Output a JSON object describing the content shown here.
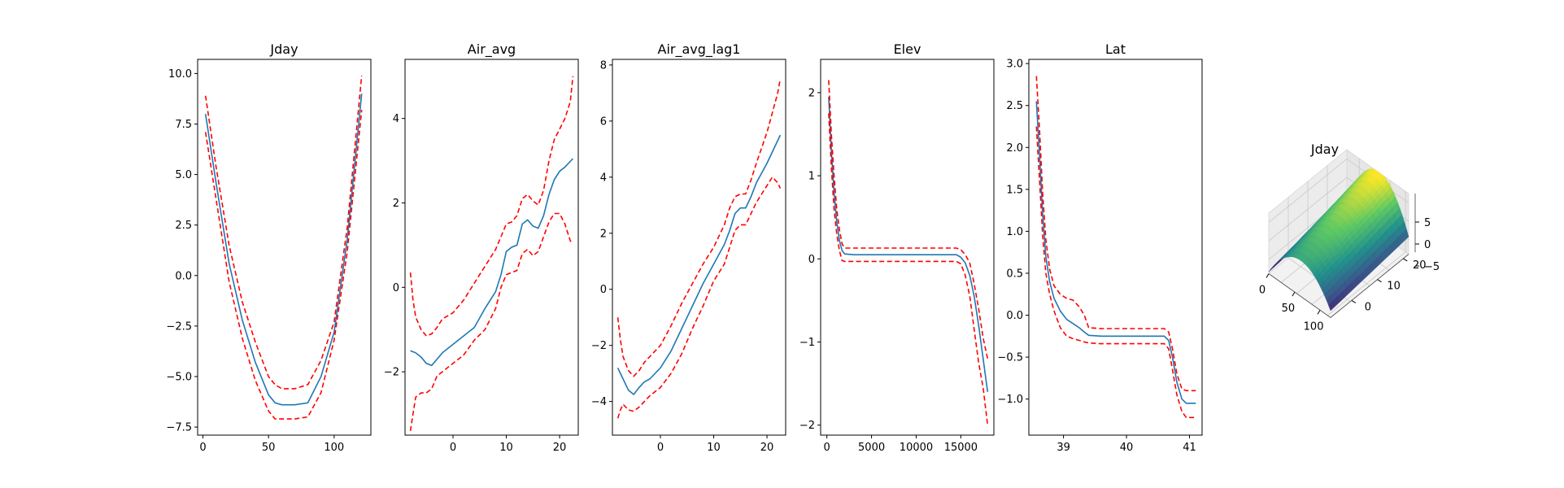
{
  "chart_data": [
    {
      "type": "line",
      "title": "Jday",
      "xlim": [
        -4,
        128
      ],
      "ylim": [
        -7.9,
        10.7
      ],
      "xticks": [
        0,
        50,
        100
      ],
      "xtick_labels": [
        "0",
        "50",
        "100"
      ],
      "yticks": [
        -7.5,
        -5.0,
        -2.5,
        0.0,
        2.5,
        5.0,
        7.5,
        10.0
      ],
      "ytick_labels": [
        "−7.5",
        "−5.0",
        "−2.5",
        "0.0",
        "2.5",
        "5.0",
        "7.5",
        "10.0"
      ],
      "series": [
        {
          "role": "fit",
          "x": [
            2,
            10,
            20,
            30,
            40,
            50,
            55,
            60,
            70,
            80,
            90,
            100,
            110,
            121
          ],
          "y": [
            8.0,
            4.6,
            0.6,
            -2.2,
            -4.3,
            -5.9,
            -6.3,
            -6.4,
            -6.4,
            -6.3,
            -5.0,
            -2.8,
            1.8,
            9.0
          ]
        },
        {
          "role": "upper",
          "x": [
            2,
            10,
            20,
            30,
            40,
            50,
            55,
            60,
            70,
            80,
            90,
            100,
            110,
            121
          ],
          "y": [
            8.9,
            5.4,
            1.5,
            -1.3,
            -3.3,
            -5.0,
            -5.4,
            -5.6,
            -5.6,
            -5.4,
            -4.2,
            -2.3,
            2.4,
            9.9
          ]
        },
        {
          "role": "lower",
          "x": [
            2,
            10,
            20,
            30,
            40,
            50,
            55,
            60,
            70,
            80,
            90,
            100,
            110,
            121
          ],
          "y": [
            7.1,
            3.8,
            -0.3,
            -3.1,
            -5.2,
            -6.7,
            -7.1,
            -7.1,
            -7.1,
            -7.0,
            -5.8,
            -3.2,
            1.2,
            8.2
          ]
        }
      ]
    },
    {
      "type": "line",
      "title": "Air_avg",
      "xlim": [
        -9,
        23.5
      ],
      "ylim": [
        -3.5,
        5.4
      ],
      "xticks": [
        0,
        10,
        20
      ],
      "xtick_labels": [
        "0",
        "10",
        "20"
      ],
      "yticks": [
        -2,
        0,
        2,
        4
      ],
      "ytick_labels": [
        "−2",
        "0",
        "2",
        "4"
      ],
      "series": [
        {
          "role": "fit",
          "x": [
            -8,
            -7,
            -6,
            -5,
            -4,
            -3,
            -2,
            0,
            2,
            4,
            6,
            8,
            9,
            10,
            11,
            12,
            13,
            14,
            15,
            16,
            17,
            18,
            19,
            20,
            21,
            22.5
          ],
          "y": [
            -1.5,
            -1.55,
            -1.65,
            -1.8,
            -1.85,
            -1.7,
            -1.55,
            -1.35,
            -1.15,
            -0.95,
            -0.5,
            -0.1,
            0.3,
            0.85,
            0.95,
            1.0,
            1.5,
            1.6,
            1.45,
            1.4,
            1.7,
            2.2,
            2.55,
            2.75,
            2.85,
            3.05
          ]
        },
        {
          "role": "upper",
          "x": [
            -8,
            -7.5,
            -7,
            -6,
            -5,
            -4,
            -3,
            -2,
            0,
            2,
            4,
            6,
            8,
            9,
            10,
            11,
            12,
            13,
            14,
            15,
            16,
            17,
            18,
            19,
            20,
            21,
            22,
            22.5
          ],
          "y": [
            0.35,
            -0.3,
            -0.7,
            -1.0,
            -1.15,
            -1.1,
            -0.95,
            -0.75,
            -0.6,
            -0.3,
            0.1,
            0.5,
            0.9,
            1.2,
            1.5,
            1.55,
            1.7,
            2.1,
            2.2,
            2.05,
            1.95,
            2.3,
            3.0,
            3.5,
            3.75,
            4.0,
            4.4,
            5.0
          ]
        },
        {
          "role": "lower",
          "x": [
            -8,
            -7.5,
            -7,
            -6,
            -5,
            -4,
            -3,
            -2,
            0,
            2,
            4,
            6,
            8,
            9,
            10,
            11,
            12,
            13,
            14,
            15,
            16,
            17,
            18,
            19,
            20,
            21,
            22,
            22.5
          ],
          "y": [
            -3.4,
            -3.0,
            -2.6,
            -2.5,
            -2.5,
            -2.4,
            -2.1,
            -2.0,
            -1.8,
            -1.6,
            -1.25,
            -1.0,
            -0.5,
            0.0,
            0.3,
            0.35,
            0.4,
            0.8,
            0.9,
            0.75,
            0.85,
            1.2,
            1.55,
            1.75,
            1.75,
            1.5,
            1.1,
            1.05
          ]
        }
      ]
    },
    {
      "type": "line",
      "title": "Air_avg_lag1",
      "xlim": [
        -9,
        23.5
      ],
      "ylim": [
        -5.2,
        8.2
      ],
      "xticks": [
        0,
        10,
        20
      ],
      "xtick_labels": [
        "0",
        "10",
        "20"
      ],
      "yticks": [
        -4,
        -2,
        0,
        2,
        4,
        6,
        8
      ],
      "ytick_labels": [
        "−4",
        "−2",
        "0",
        "2",
        "4",
        "6",
        "8"
      ],
      "series": [
        {
          "role": "fit",
          "x": [
            -8,
            -7,
            -6,
            -5,
            -4,
            -3,
            -2,
            0,
            2,
            4,
            6,
            8,
            10,
            12,
            13,
            14,
            15,
            16,
            17,
            18,
            20,
            22.5
          ],
          "y": [
            -2.8,
            -3.2,
            -3.6,
            -3.75,
            -3.5,
            -3.3,
            -3.2,
            -2.8,
            -2.2,
            -1.4,
            -0.6,
            0.2,
            0.9,
            1.6,
            2.1,
            2.7,
            2.9,
            2.9,
            3.3,
            3.8,
            4.5,
            5.5
          ]
        },
        {
          "role": "upper",
          "x": [
            -8,
            -7.5,
            -7,
            -6,
            -5,
            -4,
            -3,
            -2,
            0,
            2,
            4,
            6,
            8,
            10,
            12,
            13,
            14,
            15,
            16,
            17,
            18,
            20,
            22,
            22.5
          ],
          "y": [
            -1.0,
            -1.8,
            -2.4,
            -2.9,
            -3.1,
            -2.9,
            -2.6,
            -2.4,
            -2.0,
            -1.3,
            -0.5,
            0.2,
            0.9,
            1.5,
            2.3,
            2.9,
            3.3,
            3.4,
            3.4,
            3.9,
            4.5,
            5.6,
            7.0,
            7.5
          ]
        },
        {
          "role": "lower",
          "x": [
            -8,
            -7.5,
            -7,
            -6,
            -5,
            -4,
            -3,
            -2,
            0,
            2,
            4,
            6,
            8,
            10,
            12,
            13,
            14,
            15,
            16,
            17,
            18,
            20,
            21,
            22,
            22.5
          ],
          "y": [
            -4.6,
            -4.3,
            -4.1,
            -4.3,
            -4.35,
            -4.2,
            -4.0,
            -3.8,
            -3.5,
            -3.0,
            -2.3,
            -1.4,
            -0.6,
            0.3,
            0.9,
            1.5,
            2.1,
            2.3,
            2.3,
            2.7,
            3.1,
            3.7,
            4.0,
            3.8,
            3.6
          ]
        }
      ]
    },
    {
      "type": "line",
      "title": "Elev",
      "xlim": [
        -700,
        18700
      ],
      "ylim": [
        -2.12,
        2.4
      ],
      "xticks": [
        0,
        5000,
        10000,
        15000
      ],
      "xtick_labels": [
        "0",
        "5000",
        "10000",
        "15000"
      ],
      "yticks": [
        -2,
        -1,
        0,
        1,
        2
      ],
      "ytick_labels": [
        "−2",
        "−1",
        "0",
        "1",
        "2"
      ],
      "series": [
        {
          "role": "fit",
          "x": [
            200,
            500,
            800,
            1100,
            1400,
            1700,
            2000,
            3000,
            6000,
            10000,
            13000,
            14500,
            15000,
            15500,
            16000,
            16500,
            17000,
            17500,
            18000
          ],
          "y": [
            1.95,
            1.3,
            0.8,
            0.45,
            0.22,
            0.1,
            0.06,
            0.05,
            0.05,
            0.05,
            0.05,
            0.05,
            0.02,
            -0.05,
            -0.2,
            -0.45,
            -0.8,
            -1.2,
            -1.6
          ]
        },
        {
          "role": "upper",
          "x": [
            200,
            500,
            800,
            1100,
            1400,
            1700,
            2000,
            3000,
            6000,
            10000,
            13000,
            14500,
            15000,
            15500,
            16000,
            16500,
            17000,
            17500,
            18000
          ],
          "y": [
            2.15,
            1.5,
            1.0,
            0.6,
            0.35,
            0.18,
            0.13,
            0.13,
            0.13,
            0.13,
            0.13,
            0.13,
            0.11,
            0.05,
            -0.05,
            -0.3,
            -0.6,
            -0.95,
            -1.2
          ]
        },
        {
          "role": "lower",
          "x": [
            200,
            500,
            800,
            1100,
            1400,
            1700,
            2000,
            3000,
            6000,
            10000,
            13000,
            14500,
            15000,
            15500,
            16000,
            16500,
            17000,
            17500,
            18000
          ],
          "y": [
            1.75,
            1.1,
            0.6,
            0.3,
            0.1,
            -0.02,
            -0.03,
            -0.03,
            -0.03,
            -0.03,
            -0.03,
            -0.03,
            -0.06,
            -0.2,
            -0.45,
            -0.85,
            -1.25,
            -1.55,
            -2.0
          ]
        }
      ]
    },
    {
      "type": "line",
      "title": "Lat",
      "xlim": [
        38.45,
        41.2
      ],
      "ylim": [
        -1.43,
        3.05
      ],
      "xticks": [
        39,
        40,
        41
      ],
      "xtick_labels": [
        "39",
        "40",
        "41"
      ],
      "yticks": [
        -1.0,
        -0.5,
        0.0,
        0.5,
        1.0,
        1.5,
        2.0,
        2.5,
        3.0
      ],
      "ytick_labels": [
        "−1.0",
        "−0.5",
        "0.0",
        "0.5",
        "1.0",
        "1.5",
        "2.0",
        "2.5",
        "3.0"
      ],
      "series": [
        {
          "role": "fit",
          "x": [
            38.57,
            38.62,
            38.67,
            38.72,
            38.78,
            38.85,
            38.95,
            39.05,
            39.15,
            39.25,
            39.33,
            39.4,
            39.6,
            40.0,
            40.4,
            40.6,
            40.67,
            40.73,
            40.8,
            40.88,
            40.95,
            41.1
          ],
          "y": [
            2.55,
            1.9,
            1.2,
            0.7,
            0.4,
            0.2,
            0.05,
            -0.05,
            -0.1,
            -0.15,
            -0.2,
            -0.24,
            -0.25,
            -0.25,
            -0.25,
            -0.25,
            -0.3,
            -0.5,
            -0.8,
            -1.0,
            -1.05,
            -1.05
          ]
        },
        {
          "role": "upper",
          "x": [
            38.57,
            38.62,
            38.67,
            38.72,
            38.78,
            38.85,
            38.95,
            39.05,
            39.15,
            39.25,
            39.33,
            39.4,
            39.6,
            40.0,
            40.4,
            40.6,
            40.67,
            40.73,
            40.8,
            40.88,
            40.95,
            41.1
          ],
          "y": [
            2.85,
            2.2,
            1.45,
            0.9,
            0.55,
            0.35,
            0.25,
            0.2,
            0.18,
            0.1,
            0.0,
            -0.15,
            -0.16,
            -0.16,
            -0.16,
            -0.16,
            -0.2,
            -0.4,
            -0.7,
            -0.88,
            -0.9,
            -0.9
          ]
        },
        {
          "role": "lower",
          "x": [
            38.57,
            38.62,
            38.67,
            38.72,
            38.78,
            38.85,
            38.95,
            39.05,
            39.15,
            39.25,
            39.33,
            39.4,
            39.6,
            40.0,
            40.4,
            40.6,
            40.67,
            40.73,
            40.8,
            40.88,
            40.95,
            41.1
          ],
          "y": [
            2.25,
            1.6,
            0.95,
            0.5,
            0.25,
            0.05,
            -0.15,
            -0.25,
            -0.28,
            -0.3,
            -0.32,
            -0.33,
            -0.34,
            -0.34,
            -0.34,
            -0.34,
            -0.4,
            -0.65,
            -0.95,
            -1.15,
            -1.22,
            -1.22
          ]
        }
      ]
    },
    {
      "type": "surface",
      "title": "Jday",
      "x_ticks": [
        "0",
        "50",
        "100"
      ],
      "y_ticks": [
        "0",
        "10",
        "20"
      ],
      "z_ticks": [
        "−5",
        "0",
        "5"
      ],
      "x_range": [
        0,
        120
      ],
      "y_range": [
        -8,
        22
      ],
      "z_range": [
        -7,
        9
      ],
      "colormap": "viridis",
      "colormap_stops": [
        "#440154",
        "#3b528b",
        "#21918c",
        "#5ec962",
        "#fde725"
      ]
    }
  ]
}
